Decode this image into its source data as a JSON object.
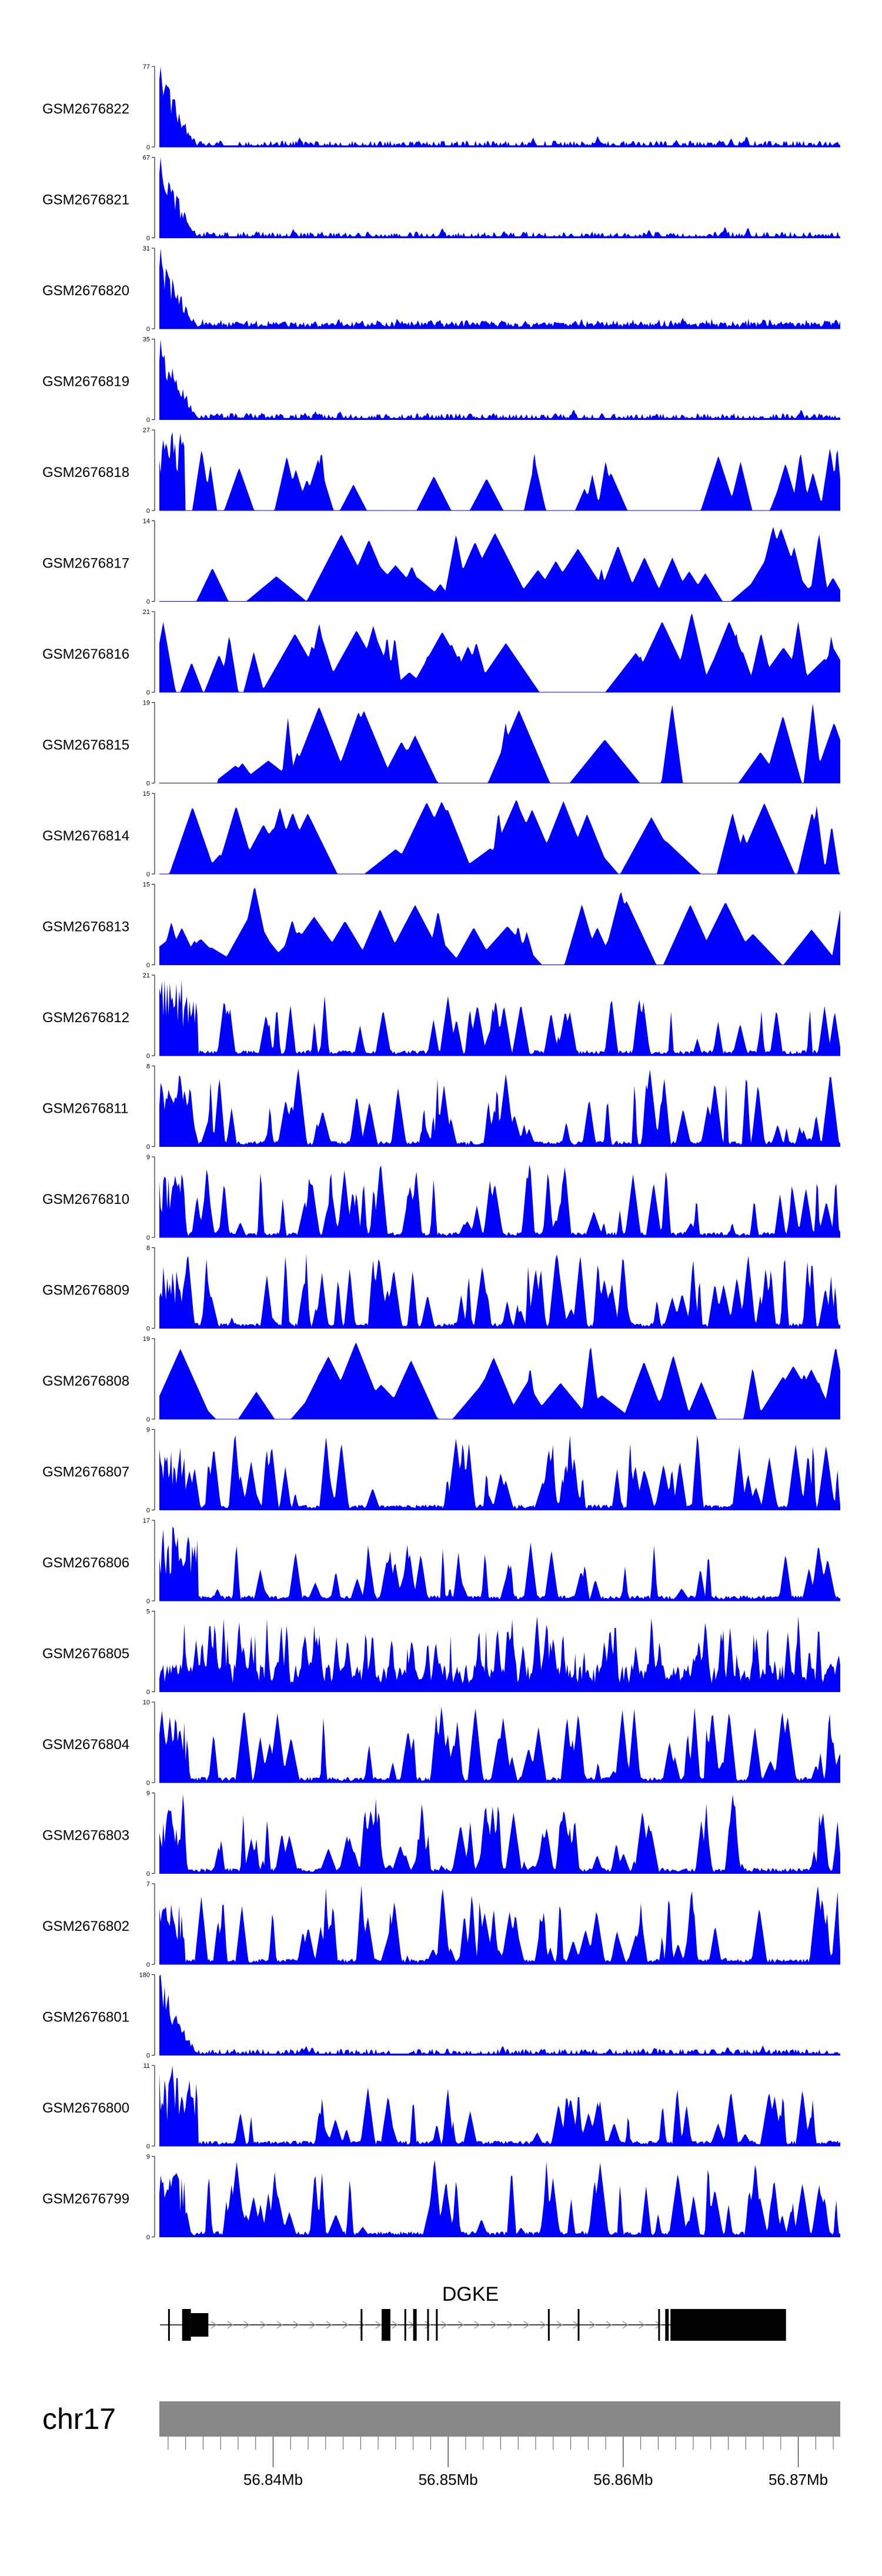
{
  "chart_data": {
    "type": "area",
    "title": "",
    "xlabel": "",
    "ylabel": "",
    "chromosome": "chr17",
    "gene": {
      "name": "DGKE",
      "strand": "+",
      "start_mb": 56.8345,
      "end_mb": 56.8693,
      "exons_mb": [
        [
          56.834,
          56.8341
        ],
        [
          56.8348,
          56.8353
        ],
        [
          56.8353,
          56.8363
        ],
        [
          56.845,
          56.8451
        ],
        [
          56.8462,
          56.8467
        ],
        [
          56.8475,
          56.8476
        ],
        [
          56.848,
          56.8482
        ],
        [
          56.8488,
          56.8489
        ],
        [
          56.8493,
          56.8494
        ],
        [
          56.8557,
          56.8558
        ],
        [
          56.8574,
          56.8575
        ],
        [
          56.862,
          56.8621
        ],
        [
          56.8624,
          56.8626
        ],
        [
          56.8627,
          56.8693
        ]
      ]
    },
    "x_range_mb": [
      56.8335,
      56.8724
    ],
    "x_ticks": [
      56.834,
      56.835,
      56.836,
      56.837,
      56.838,
      56.839,
      56.84,
      56.841,
      56.842,
      56.843,
      56.844,
      56.845,
      56.846,
      56.847,
      56.848,
      56.849,
      56.85,
      56.851,
      56.852,
      56.853,
      56.854,
      56.855,
      56.856,
      56.857,
      56.858,
      56.859,
      56.86,
      56.861,
      56.862,
      56.863,
      56.864,
      56.865,
      56.866,
      56.867,
      56.868,
      56.869,
      56.87,
      56.871,
      56.872
    ],
    "x_tick_labels": [
      {
        "value": 56.84,
        "label": "56.84Mb"
      },
      {
        "value": 56.85,
        "label": "56.85Mb"
      },
      {
        "value": 56.86,
        "label": "56.86Mb"
      },
      {
        "value": 56.87,
        "label": "56.87Mb"
      }
    ],
    "tracks": [
      {
        "name": "GSM2676822",
        "ymax": 77,
        "ymin": 0,
        "profile": "spike-start",
        "seed": 22
      },
      {
        "name": "GSM2676821",
        "ymax": 67,
        "ymin": 0,
        "profile": "spike-start",
        "seed": 21
      },
      {
        "name": "GSM2676820",
        "ymax": 31,
        "ymin": 0,
        "profile": "spike-start-mid",
        "seed": 20
      },
      {
        "name": "GSM2676819",
        "ymax": 35,
        "ymin": 0,
        "profile": "spike-start",
        "seed": 19
      },
      {
        "name": "GSM2676818",
        "ymax": 27,
        "ymin": 0,
        "profile": "sparse-start",
        "seed": 18
      },
      {
        "name": "GSM2676817",
        "ymax": 14,
        "ymin": 0,
        "profile": "sparse",
        "seed": 17
      },
      {
        "name": "GSM2676816",
        "ymax": 21,
        "ymin": 0,
        "profile": "sparse",
        "seed": 16
      },
      {
        "name": "GSM2676815",
        "ymax": 19,
        "ymin": 0,
        "profile": "very-sparse",
        "seed": 15
      },
      {
        "name": "GSM2676814",
        "ymax": 15,
        "ymin": 0,
        "profile": "sparse",
        "seed": 14
      },
      {
        "name": "GSM2676813",
        "ymax": 15,
        "ymin": 0,
        "profile": "sparse",
        "seed": 13
      },
      {
        "name": "GSM2676812",
        "ymax": 21,
        "ymin": 0,
        "profile": "dense-start",
        "seed": 12
      },
      {
        "name": "GSM2676811",
        "ymax": 8,
        "ymin": 0,
        "profile": "dense",
        "seed": 11
      },
      {
        "name": "GSM2676810",
        "ymax": 9,
        "ymin": 0,
        "profile": "dense",
        "seed": 10
      },
      {
        "name": "GSM2676809",
        "ymax": 8,
        "ymin": 0,
        "profile": "dense",
        "seed": 9
      },
      {
        "name": "GSM2676808",
        "ymax": 19,
        "ymin": 0,
        "profile": "sparse",
        "seed": 8
      },
      {
        "name": "GSM2676807",
        "ymax": 9,
        "ymin": 0,
        "profile": "dense",
        "seed": 7
      },
      {
        "name": "GSM2676806",
        "ymax": 17,
        "ymin": 0,
        "profile": "dense-start",
        "seed": 6
      },
      {
        "name": "GSM2676805",
        "ymax": 5,
        "ymin": 0,
        "profile": "very-dense",
        "seed": 5
      },
      {
        "name": "GSM2676804",
        "ymax": 10,
        "ymin": 0,
        "profile": "dense",
        "seed": 4
      },
      {
        "name": "GSM2676803",
        "ymax": 9,
        "ymin": 0,
        "profile": "dense",
        "seed": 3
      },
      {
        "name": "GSM2676802",
        "ymax": 7,
        "ymin": 0,
        "profile": "dense",
        "seed": 2
      },
      {
        "name": "GSM2676801",
        "ymax": 180,
        "ymin": 0,
        "profile": "spike-start",
        "seed": 1
      },
      {
        "name": "GSM2676800",
        "ymax": 11,
        "ymin": 0,
        "profile": "dense-start",
        "seed": 100
      },
      {
        "name": "GSM2676799",
        "ymax": 9,
        "ymin": 0,
        "profile": "dense",
        "seed": 99
      }
    ],
    "colors": {
      "signal": "#0000ff",
      "axis": "#000000",
      "gene": "#000000",
      "intron_arrow": "#999999",
      "chrom_bar": "#888888",
      "background": "#ffffff"
    }
  }
}
